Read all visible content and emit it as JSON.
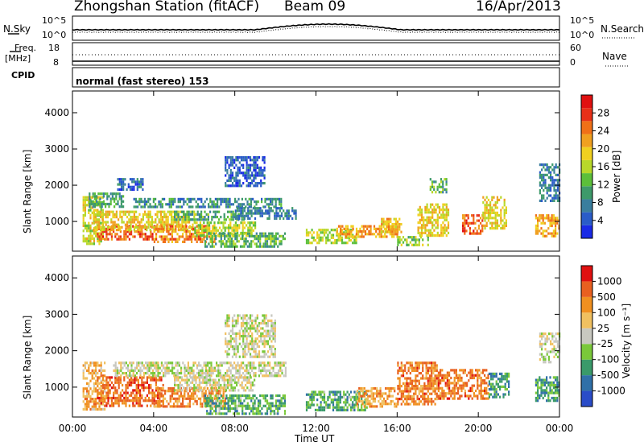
{
  "header": {
    "station": "Zhongshan Station (fitACF)",
    "beam": "Beam 09",
    "date": "16/Apr/2013"
  },
  "top_panels": {
    "nsky_label": "N.Sky",
    "nsky_ticks": [
      "10^5",
      "10^0"
    ],
    "nsearch_label": "N.Search",
    "freq_label": "Freq.",
    "freq_unit": "[MHz]",
    "freq_ticks": [
      "18",
      "8"
    ],
    "nave_label": "Nave",
    "nave_ticks": [
      "60",
      "0"
    ],
    "cpid_label": "CPID",
    "cpid_text": "normal (fast stereo) 153"
  },
  "chart_data": [
    {
      "type": "heatmap",
      "title": "",
      "xlabel": "Time UT",
      "ylabel": "Slant Range [km]",
      "x_ticks": [
        "00:00",
        "04:00",
        "08:00",
        "12:00",
        "16:00",
        "20:00",
        "00:00"
      ],
      "xlim_hours": [
        0,
        24
      ],
      "y_ticks": [
        "1000",
        "2000",
        "3000",
        "4000"
      ],
      "ylim_km": [
        180,
        4600
      ],
      "colorbar": {
        "label": "Power [dB]",
        "ticks": [
          "4",
          "8",
          "12",
          "16",
          "20",
          "24",
          "28"
        ],
        "range": [
          0,
          32
        ],
        "colors": [
          "#1a2ae6",
          "#2a5cc8",
          "#3a7e9e",
          "#3e9a6a",
          "#5cbf3a",
          "#b8d82a",
          "#f0d020",
          "#f0a020",
          "#f07018",
          "#e83018",
          "#e01010"
        ]
      },
      "regions": [
        {
          "t0": 0.5,
          "t1": 1.5,
          "r0": 400,
          "r1": 1700,
          "level": 0.55
        },
        {
          "t0": 1.2,
          "t1": 4.0,
          "r0": 500,
          "r1": 900,
          "level": 0.85
        },
        {
          "t0": 1.0,
          "t1": 6.0,
          "r0": 800,
          "r1": 1300,
          "level": 0.6
        },
        {
          "t0": 0.8,
          "t1": 2.5,
          "r0": 1400,
          "r1": 1800,
          "level": 0.3
        },
        {
          "t0": 2.2,
          "t1": 3.5,
          "r0": 1900,
          "r1": 2200,
          "level": 0.15
        },
        {
          "t0": 4.0,
          "t1": 7.0,
          "r0": 450,
          "r1": 900,
          "level": 0.75
        },
        {
          "t0": 3.0,
          "t1": 10.3,
          "r0": 1400,
          "r1": 1650,
          "level": 0.25
        },
        {
          "t0": 5.0,
          "t1": 8.5,
          "r0": 1050,
          "r1": 1300,
          "level": 0.35
        },
        {
          "t0": 6.0,
          "t1": 9.0,
          "r0": 600,
          "r1": 1000,
          "level": 0.5
        },
        {
          "t0": 6.5,
          "t1": 10.5,
          "r0": 300,
          "r1": 700,
          "level": 0.35
        },
        {
          "t0": 7.5,
          "t1": 9.5,
          "r0": 2000,
          "r1": 2800,
          "level": 0.12
        },
        {
          "t0": 8.0,
          "t1": 11.0,
          "r0": 1100,
          "r1": 1400,
          "level": 0.2
        },
        {
          "t0": 11.5,
          "t1": 14.0,
          "r0": 400,
          "r1": 800,
          "level": 0.5
        },
        {
          "t0": 13.0,
          "t1": 16.0,
          "r0": 600,
          "r1": 900,
          "level": 0.7
        },
        {
          "t0": 15.2,
          "t1": 16.2,
          "r0": 700,
          "r1": 1100,
          "level": 0.65
        },
        {
          "t0": 16.0,
          "t1": 17.5,
          "r0": 350,
          "r1": 600,
          "level": 0.45
        },
        {
          "t0": 17.0,
          "t1": 18.5,
          "r0": 600,
          "r1": 1500,
          "level": 0.6
        },
        {
          "t0": 17.6,
          "t1": 18.4,
          "r0": 1800,
          "r1": 2200,
          "level": 0.35
        },
        {
          "t0": 19.2,
          "t1": 20.2,
          "r0": 700,
          "r1": 1200,
          "level": 0.85
        },
        {
          "t0": 20.2,
          "t1": 21.4,
          "r0": 800,
          "r1": 1700,
          "level": 0.6
        },
        {
          "t0": 22.8,
          "t1": 24.0,
          "r0": 600,
          "r1": 1200,
          "level": 0.7
        },
        {
          "t0": 23.0,
          "t1": 24.0,
          "r0": 1600,
          "r1": 2600,
          "level": 0.2
        }
      ]
    },
    {
      "type": "heatmap",
      "title": "",
      "xlabel": "Time UT",
      "ylabel": "Slant Range [km]",
      "x_ticks": [
        "00:00",
        "04:00",
        "08:00",
        "12:00",
        "16:00",
        "20:00",
        "00:00"
      ],
      "xlim_hours": [
        0,
        24
      ],
      "y_ticks": [
        "1000",
        "2000",
        "3000",
        "4000"
      ],
      "ylim_km": [
        180,
        4600
      ],
      "colorbar": {
        "label": "Velocity [m s⁻¹]",
        "ticks": [
          "1000",
          "500",
          "100",
          "25",
          "-25",
          "-100",
          "-500",
          "-1000"
        ],
        "colors": [
          "#2a4cc8",
          "#3070a8",
          "#3a9a6a",
          "#7ac83a",
          "#c8c8c0",
          "#f0c060",
          "#f09020",
          "#e86020",
          "#e01010"
        ]
      },
      "regions": [
        {
          "t0": 0.5,
          "t1": 1.6,
          "r0": 400,
          "r1": 1700,
          "level": 0.68
        },
        {
          "t0": 1.2,
          "t1": 4.5,
          "r0": 500,
          "r1": 1300,
          "level": 0.85
        },
        {
          "t0": 4.0,
          "t1": 7.5,
          "r0": 500,
          "r1": 1000,
          "level": 0.78
        },
        {
          "t0": 2.0,
          "t1": 10.5,
          "r0": 1300,
          "r1": 1700,
          "level": 0.5
        },
        {
          "t0": 5.0,
          "t1": 9.0,
          "r0": 900,
          "r1": 1300,
          "level": 0.52
        },
        {
          "t0": 7.5,
          "t1": 10.0,
          "r0": 1800,
          "r1": 3000,
          "level": 0.5
        },
        {
          "t0": 6.5,
          "t1": 10.5,
          "r0": 300,
          "r1": 800,
          "level": 0.3
        },
        {
          "t0": 11.5,
          "t1": 14.5,
          "r0": 400,
          "r1": 900,
          "level": 0.3
        },
        {
          "t0": 14.0,
          "t1": 16.0,
          "r0": 500,
          "r1": 1000,
          "level": 0.72
        },
        {
          "t0": 16.0,
          "t1": 18.0,
          "r0": 500,
          "r1": 1700,
          "level": 0.8
        },
        {
          "t0": 18.0,
          "t1": 20.5,
          "r0": 700,
          "r1": 1500,
          "level": 0.82
        },
        {
          "t0": 20.5,
          "t1": 21.5,
          "r0": 700,
          "r1": 1400,
          "level": 0.25
        },
        {
          "t0": 22.8,
          "t1": 24.0,
          "r0": 600,
          "r1": 1300,
          "level": 0.25
        },
        {
          "t0": 23.0,
          "t1": 24.0,
          "r0": 1700,
          "r1": 2500,
          "level": 0.5
        }
      ]
    }
  ]
}
